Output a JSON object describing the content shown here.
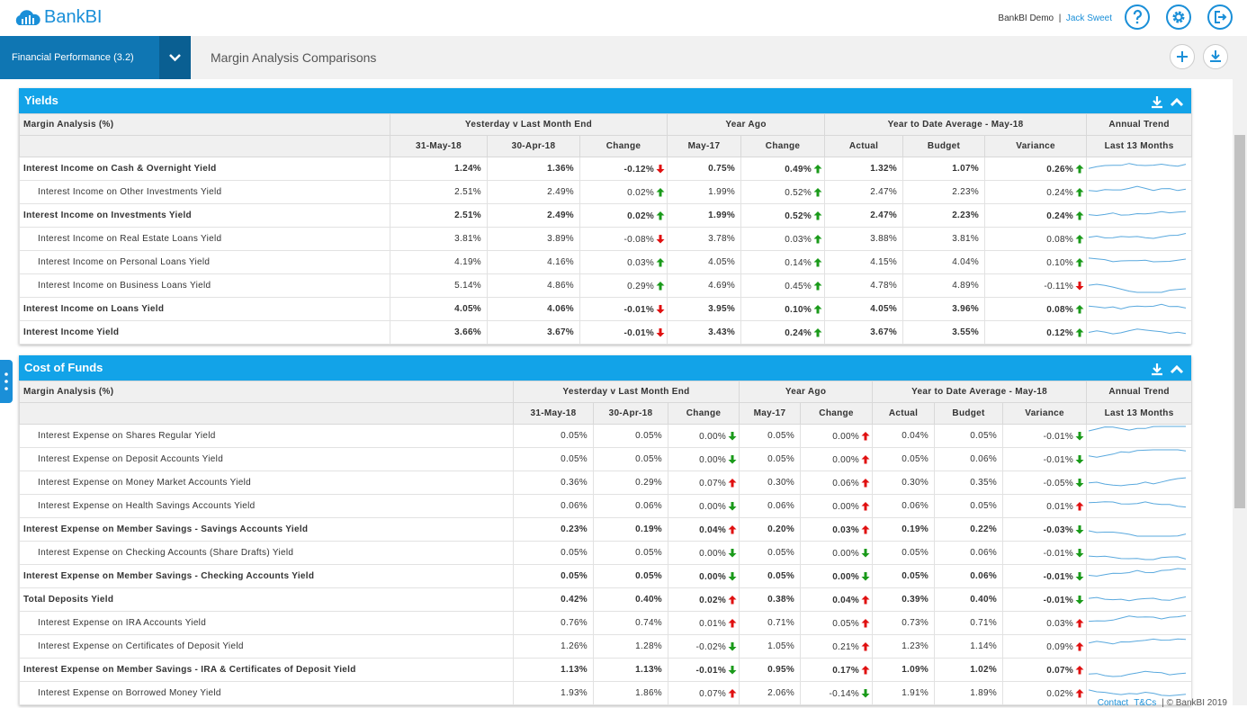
{
  "header": {
    "logo": "BankBI",
    "org": "BankBI Demo",
    "separator": "|",
    "user": "Jack Sweet"
  },
  "nav": {
    "tab": "Financial Performance (3.2)",
    "title": "Margin Analysis Comparisons"
  },
  "panels": [
    {
      "title": "Yields",
      "label_header": "Margin Analysis (%)",
      "groups": [
        "Yesterday v Last Month End",
        "Year Ago",
        "Year to Date Average - May-18",
        "Annual Trend"
      ],
      "subheaders": [
        "31-May-18",
        "30-Apr-18",
        "Change",
        "May-17",
        "Change",
        "Actual",
        "Budget",
        "Variance",
        "Last 13 Months"
      ],
      "rows": [
        {
          "label": "Interest Income on Cash & Overnight Yield",
          "cells": [
            "1.24%",
            "1.36%",
            "-0.12%",
            "0.75%",
            "0.49%",
            "1.32%",
            "1.07%",
            "0.26%"
          ]
        },
        {
          "label": "Interest Income on Other Investments Yield",
          "cells": [
            "2.51%",
            "2.49%",
            "0.02%",
            "1.99%",
            "0.52%",
            "2.47%",
            "2.23%",
            "0.24%"
          ]
        },
        {
          "label": "Interest Income on Investments Yield",
          "cells": [
            "2.51%",
            "2.49%",
            "0.02%",
            "1.99%",
            "0.52%",
            "2.47%",
            "2.23%",
            "0.24%"
          ]
        },
        {
          "label": "Interest Income on Real Estate Loans Yield",
          "cells": [
            "3.81%",
            "3.89%",
            "-0.08%",
            "3.78%",
            "0.03%",
            "3.88%",
            "3.81%",
            "0.08%"
          ]
        },
        {
          "label": "Interest Income on Personal Loans Yield",
          "cells": [
            "4.19%",
            "4.16%",
            "0.03%",
            "4.05%",
            "0.14%",
            "4.15%",
            "4.04%",
            "0.10%"
          ]
        },
        {
          "label": "Interest Income on Business Loans Yield",
          "cells": [
            "5.14%",
            "4.86%",
            "0.29%",
            "4.69%",
            "0.45%",
            "4.78%",
            "4.89%",
            "-0.11%"
          ]
        },
        {
          "label": "Interest Income on Loans Yield",
          "cells": [
            "4.05%",
            "4.06%",
            "-0.01%",
            "3.95%",
            "0.10%",
            "4.05%",
            "3.96%",
            "0.08%"
          ]
        },
        {
          "label": "Interest Income Yield",
          "cells": [
            "3.66%",
            "3.67%",
            "-0.01%",
            "3.43%",
            "0.24%",
            "3.67%",
            "3.55%",
            "0.12%"
          ]
        }
      ]
    },
    {
      "title": "Cost of Funds",
      "label_header": "Margin Analysis (%)",
      "groups": [
        "Yesterday v Last Month End",
        "Year Ago",
        "Year to Date Average - May-18",
        "Annual Trend"
      ],
      "subheaders": [
        "31-May-18",
        "30-Apr-18",
        "Change",
        "May-17",
        "Change",
        "Actual",
        "Budget",
        "Variance",
        "Last 13 Months"
      ],
      "rows": [
        {
          "label": "Interest Expense on Shares Regular Yield",
          "cells": [
            "0.05%",
            "0.05%",
            "0.00%",
            "0.05%",
            "0.00%",
            "0.04%",
            "0.05%",
            "-0.01%"
          ]
        },
        {
          "label": "Interest Expense on Deposit Accounts Yield",
          "cells": [
            "0.05%",
            "0.05%",
            "0.00%",
            "0.05%",
            "0.00%",
            "0.05%",
            "0.06%",
            "-0.01%"
          ]
        },
        {
          "label": "Interest Expense on Money Market Accounts Yield",
          "cells": [
            "0.36%",
            "0.29%",
            "0.07%",
            "0.30%",
            "0.06%",
            "0.30%",
            "0.35%",
            "-0.05%"
          ]
        },
        {
          "label": "Interest Expense on Health Savings Accounts Yield",
          "cells": [
            "0.06%",
            "0.06%",
            "0.00%",
            "0.06%",
            "0.00%",
            "0.06%",
            "0.05%",
            "0.01%"
          ]
        },
        {
          "label": "Interest Expense on Member Savings - Savings Accounts Yield",
          "cells": [
            "0.23%",
            "0.19%",
            "0.04%",
            "0.20%",
            "0.03%",
            "0.19%",
            "0.22%",
            "-0.03%"
          ]
        },
        {
          "label": "Interest Expense on Checking Accounts (Share Drafts) Yield",
          "cells": [
            "0.05%",
            "0.05%",
            "0.00%",
            "0.05%",
            "0.00%",
            "0.05%",
            "0.06%",
            "-0.01%"
          ]
        },
        {
          "label": "Interest Expense on Member Savings - Checking Accounts Yield",
          "cells": [
            "0.05%",
            "0.05%",
            "0.00%",
            "0.05%",
            "0.00%",
            "0.05%",
            "0.06%",
            "-0.01%"
          ]
        },
        {
          "label": "Total Deposits Yield",
          "cells": [
            "0.42%",
            "0.40%",
            "0.02%",
            "0.38%",
            "0.04%",
            "0.39%",
            "0.40%",
            "-0.01%"
          ]
        },
        {
          "label": "Interest Expense on IRA Accounts Yield",
          "cells": [
            "0.76%",
            "0.74%",
            "0.01%",
            "0.71%",
            "0.05%",
            "0.73%",
            "0.71%",
            "0.03%"
          ]
        },
        {
          "label": "Interest Expense on Certificates of Deposit Yield",
          "cells": [
            "1.26%",
            "1.28%",
            "-0.02%",
            "1.05%",
            "0.21%",
            "1.23%",
            "1.14%",
            "0.09%"
          ]
        },
        {
          "label": "Interest Expense on Member Savings - IRA & Certificates of Deposit Yield",
          "cells": [
            "1.13%",
            "1.13%",
            "-0.01%",
            "0.95%",
            "0.17%",
            "1.09%",
            "1.02%",
            "0.07%"
          ]
        },
        {
          "label": "Interest Expense on Borrowed Money Yield",
          "cells": [
            "1.93%",
            "1.86%",
            "0.07%",
            "2.06%",
            "-0.14%",
            "1.91%",
            "1.89%",
            "0.02%"
          ]
        }
      ]
    }
  ],
  "footer": {
    "contact": "Contact",
    "terms": "T&Cs",
    "copyright": "| © BankBI 2019"
  }
}
